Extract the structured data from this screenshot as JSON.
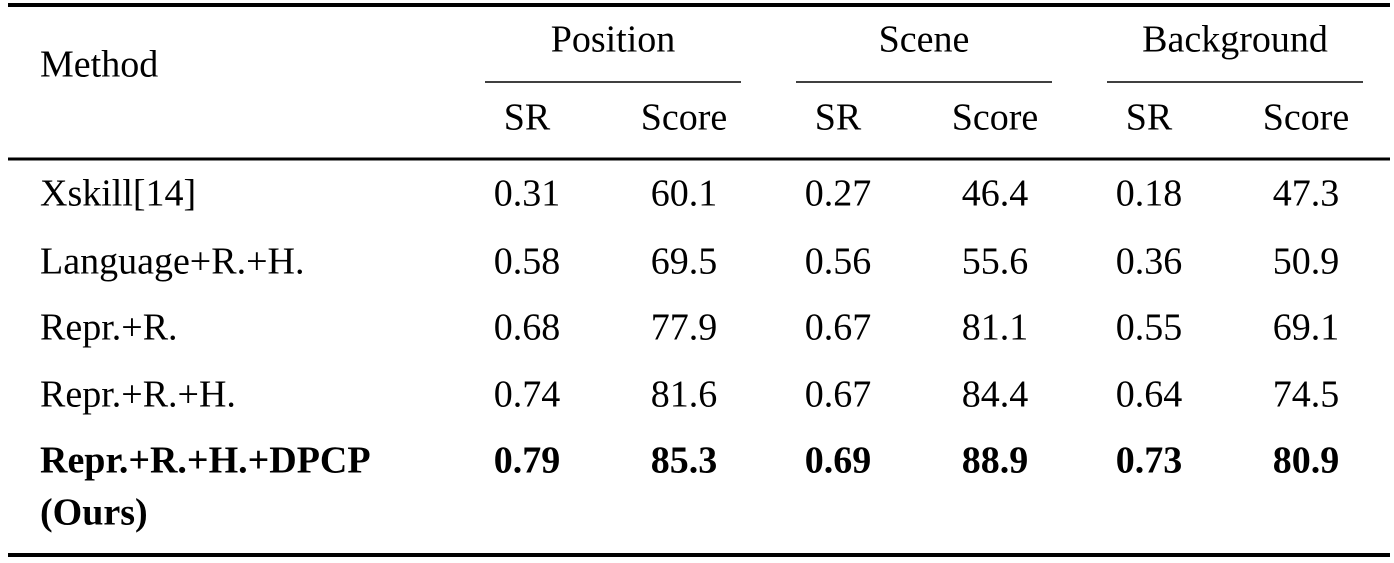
{
  "table": {
    "header": {
      "method": "Method",
      "groups": [
        {
          "name": "Position",
          "columns": [
            "SR",
            "Score"
          ]
        },
        {
          "name": "Scene",
          "columns": [
            "SR",
            "Score"
          ]
        },
        {
          "name": "Background",
          "columns": [
            "SR",
            "Score"
          ]
        }
      ]
    },
    "rows": [
      {
        "method": [
          "Xskill[14]"
        ],
        "values": [
          "0.31",
          "60.1",
          "0.27",
          "46.4",
          "0.18",
          "47.3"
        ],
        "bold": false
      },
      {
        "method": [
          "Language+R.+H."
        ],
        "values": [
          "0.58",
          "69.5",
          "0.56",
          "55.6",
          "0.36",
          "50.9"
        ],
        "bold": false
      },
      {
        "method": [
          "Repr.+R."
        ],
        "values": [
          "0.68",
          "77.9",
          "0.67",
          "81.1",
          "0.55",
          "69.1"
        ],
        "bold": false
      },
      {
        "method": [
          "Repr.+R.+H."
        ],
        "values": [
          "0.74",
          "81.6",
          "0.67",
          "84.4",
          "0.64",
          "74.5"
        ],
        "bold": false
      },
      {
        "method": [
          "Repr.+R.+H.+DPCP",
          "(Ours)"
        ],
        "values": [
          "0.79",
          "85.3",
          "0.69",
          "88.9",
          "0.73",
          "80.9"
        ],
        "bold": true
      }
    ]
  }
}
